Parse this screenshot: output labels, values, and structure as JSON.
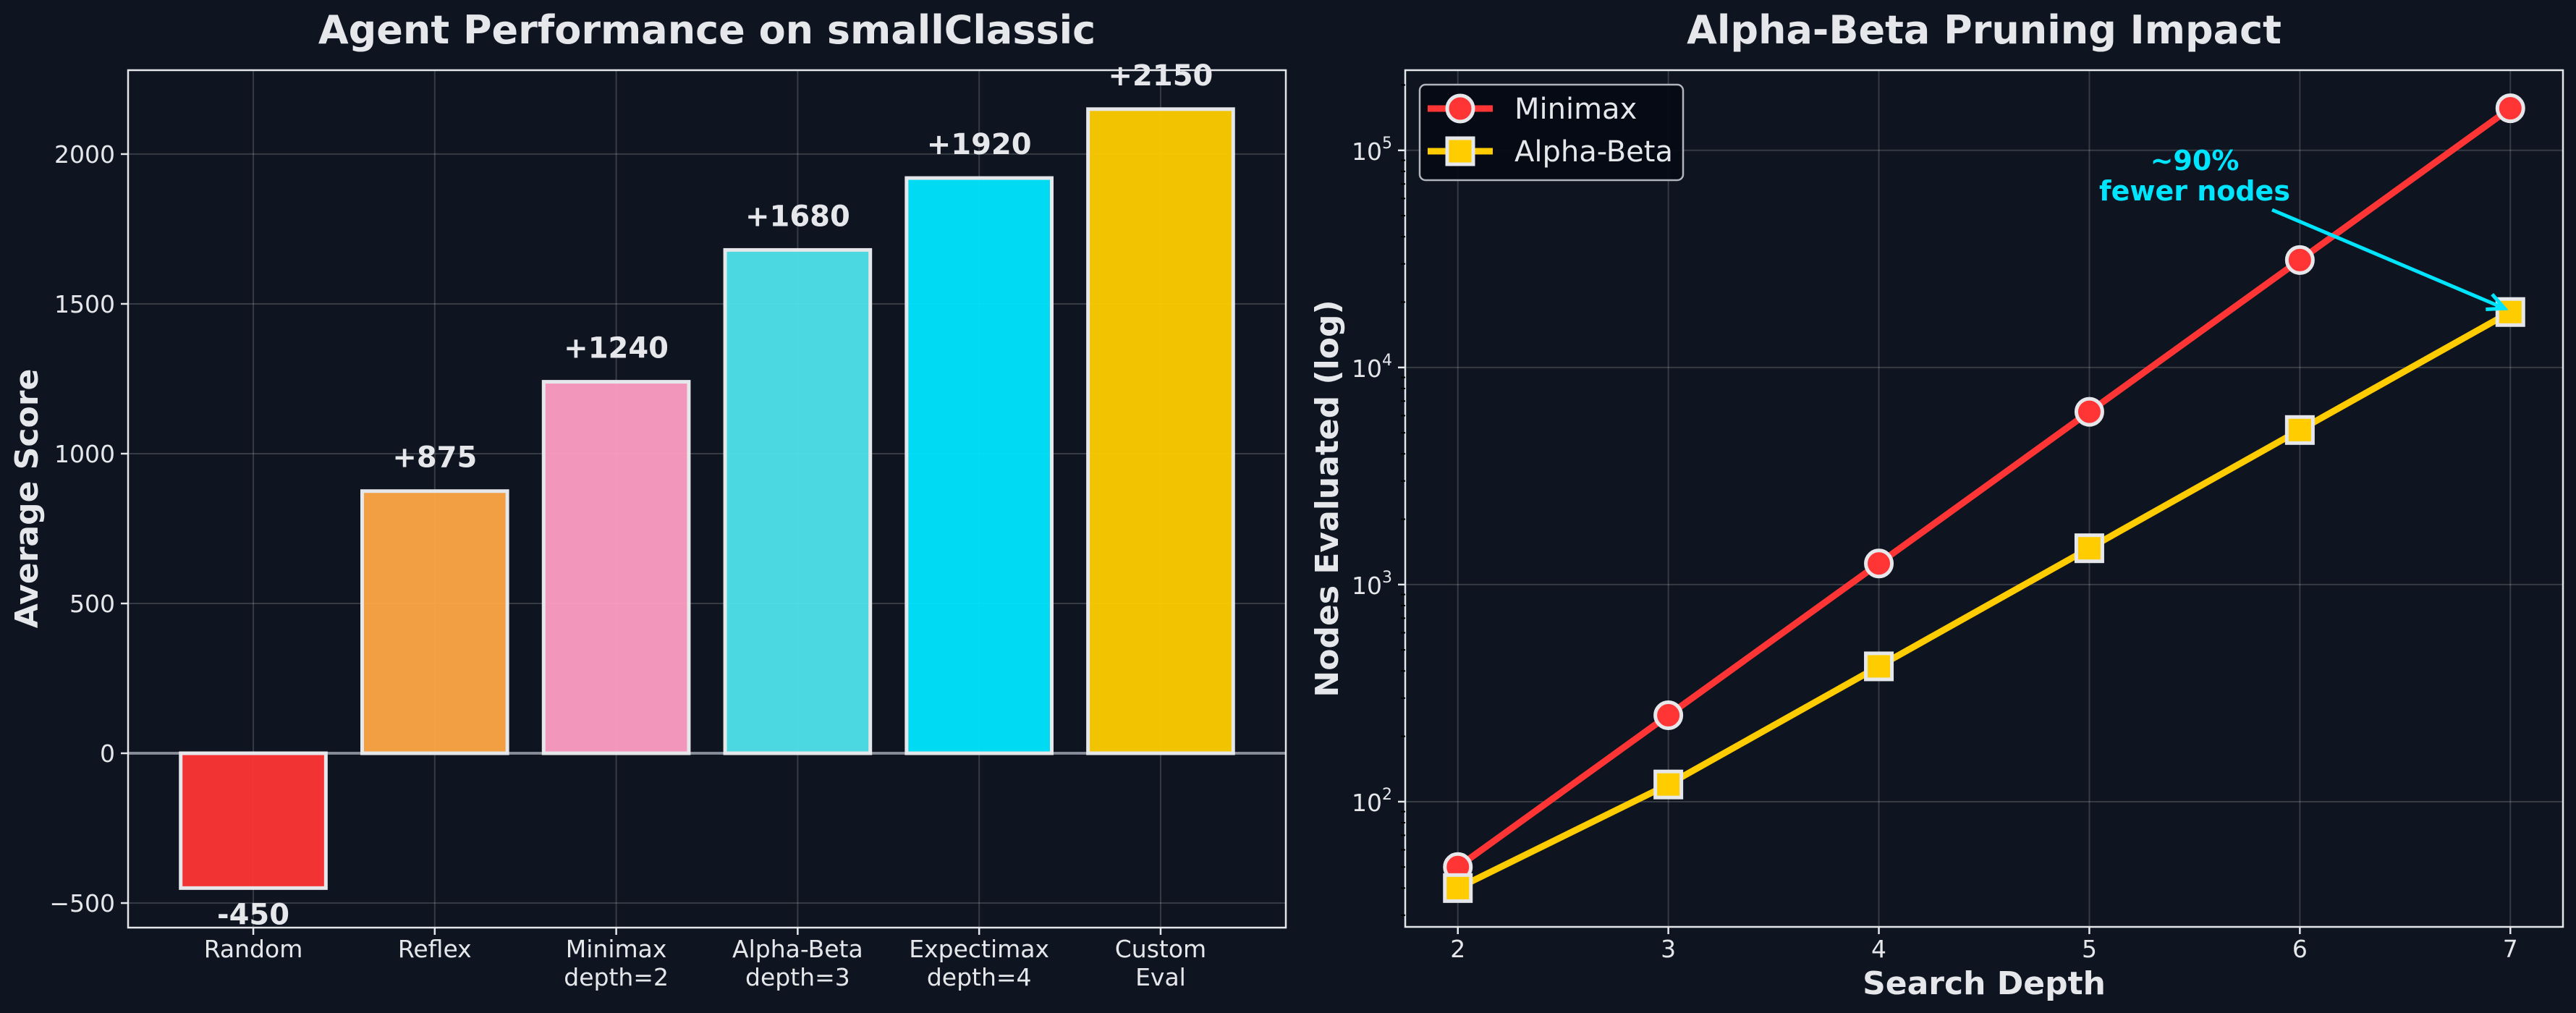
{
  "chart_data": [
    {
      "type": "bar",
      "title": "Agent Performance on smallClassic",
      "xlabel": "",
      "ylabel": "Average Score",
      "categories": [
        [
          "Random"
        ],
        [
          "Reflex"
        ],
        [
          "Minimax",
          "depth=2"
        ],
        [
          "Alpha-Beta",
          "depth=3"
        ],
        [
          "Expectimax",
          "depth=4"
        ],
        [
          "Custom",
          "Eval"
        ]
      ],
      "values": [
        -450,
        875,
        1240,
        1680,
        1920,
        2150
      ],
      "value_labels": [
        "-450",
        "+875",
        "+1240",
        "+1680",
        "+1920",
        "+2150"
      ],
      "colors": [
        "#ff3535",
        "#ffa545",
        "#ff9ec4",
        "#50e3eb",
        "#00e5ff",
        "#ffcc00"
      ],
      "ylim": [
        -582,
        2280
      ],
      "yticks": [
        -500,
        0,
        500,
        1000,
        1500,
        2000
      ],
      "ytick_labels": [
        "−500",
        "0",
        "500",
        "1000",
        "1500",
        "2000"
      ],
      "grid": true
    },
    {
      "type": "line",
      "title": "Alpha-Beta Pruning Impact",
      "xlabel": "Search Depth",
      "ylabel": "Nodes Evaluated (log)",
      "yscale": "log",
      "x": [
        2,
        3,
        4,
        5,
        6,
        7
      ],
      "xlim": [
        1.75,
        7.25
      ],
      "ylim": [
        26.5,
        234000
      ],
      "xticks": [
        2,
        3,
        4,
        5,
        6,
        7
      ],
      "yticks": [
        100,
        1000,
        10000,
        100000
      ],
      "ytick_labels": [
        {
          "base": "10",
          "exp": "2"
        },
        {
          "base": "10",
          "exp": "3"
        },
        {
          "base": "10",
          "exp": "4"
        },
        {
          "base": "10",
          "exp": "5"
        }
      ],
      "series": [
        {
          "name": "Minimax",
          "values": [
            50,
            250,
            1250,
            6250,
            31250,
            156250
          ],
          "color": "#ff3535",
          "marker": "circle"
        },
        {
          "name": "Alpha-Beta",
          "values": [
            40,
            120,
            420,
            1470,
            5150,
            18000
          ],
          "color": "#ffcc00",
          "marker": "square"
        }
      ],
      "legend": {
        "position": "top-left"
      },
      "annotation": {
        "lines": [
          "~90%",
          "fewer nodes"
        ],
        "target_x": 7,
        "target_series": "Alpha-Beta",
        "color": "#00e5ff"
      },
      "grid": true
    }
  ]
}
